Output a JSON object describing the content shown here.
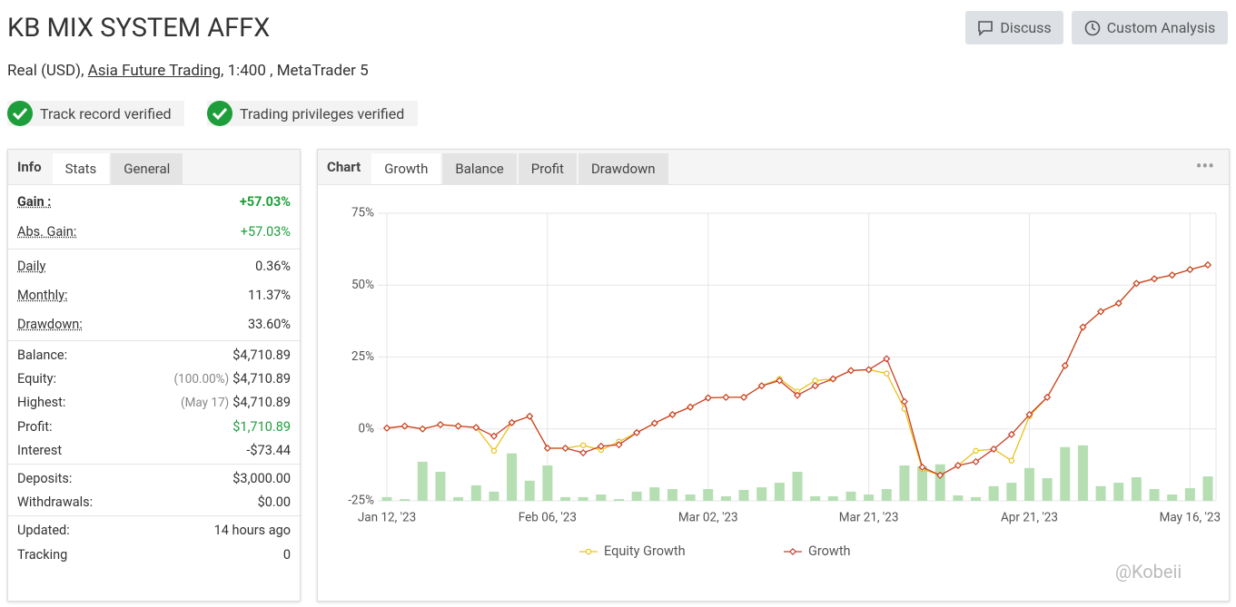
{
  "header": {
    "title": "KB MIX SYSTEM AFFX",
    "subtitle_prefix": "Real (USD), ",
    "subtitle_link": "Asia Future Trading",
    "subtitle_suffix": ", 1:400 , MetaTrader 5",
    "buttons": [
      "Discuss",
      "Custom Analysis"
    ]
  },
  "badges": [
    "Track record verified",
    "Trading privileges verified"
  ],
  "stats_panel": {
    "tabs": [
      "Info",
      "Stats",
      "General"
    ],
    "groups": [
      [
        {
          "label": "Gain :",
          "value": "+57.03%",
          "color": "#1e9e3a"
        },
        {
          "label": "Abs. Gain:",
          "value": "+57.03%",
          "color": "#1e9e3a"
        }
      ],
      [
        {
          "label": "Daily",
          "value": "0.36%"
        },
        {
          "label": "Monthly:",
          "value": "11.37%"
        },
        {
          "label": "Drawdown:",
          "value": "33.60%"
        }
      ],
      [
        {
          "label": "Balance:",
          "value": "$4,710.89"
        },
        {
          "label": "Equity:",
          "note": "(100.00%)",
          "value": "$4,710.89"
        },
        {
          "label": "Highest:",
          "note": "(May 17)",
          "value": "$4,710.89"
        },
        {
          "label": "Profit:",
          "value": "$1,710.89",
          "color": "#1e9e3a"
        },
        {
          "label": "Interest",
          "value": "-$73.44"
        }
      ],
      [
        {
          "label": "Deposits:",
          "value": "$3,000.00"
        },
        {
          "label": "Withdrawals:",
          "value": "$0.00"
        }
      ],
      [
        {
          "label": "Updated:",
          "value": "14 hours ago"
        },
        {
          "label": "Tracking",
          "value": "0"
        }
      ]
    ]
  },
  "chart_panel": {
    "tabs": [
      "Chart",
      "Growth",
      "Balance",
      "Profit",
      "Drawdown"
    ]
  },
  "chart_data": {
    "type": "line",
    "categories": [
      "Jan 12, '23",
      null,
      null,
      null,
      null,
      null,
      null,
      null,
      null,
      "Feb 06, '23",
      null,
      null,
      null,
      null,
      null,
      null,
      null,
      null,
      "Mar 02, '23",
      null,
      null,
      null,
      null,
      null,
      null,
      null,
      null,
      "Mar 21, '23",
      null,
      null,
      null,
      null,
      null,
      null,
      null,
      null,
      "Apr 21, '23",
      null,
      null,
      null,
      null,
      null,
      null,
      null,
      null,
      "May 16, '23",
      null
    ],
    "ylim": [
      -25,
      75
    ],
    "yticks": [
      {
        "value": -25,
        "label": "-25%"
      },
      {
        "value": 0,
        "label": "0%"
      },
      {
        "value": 25,
        "label": "25%"
      },
      {
        "value": 50,
        "label": "50%"
      },
      {
        "value": 75,
        "label": "75%"
      }
    ],
    "grid": true,
    "series": [
      {
        "name": "Equity Growth",
        "color": "#e8c21c",
        "values": [
          0.3,
          1,
          0,
          1.5,
          1,
          0.5,
          -7.6,
          2.2,
          4.4,
          -6.7,
          -6.7,
          -5.7,
          -7.3,
          -4.4,
          -1.3,
          2,
          5,
          7.6,
          10.8,
          11,
          11,
          15,
          17.4,
          13,
          16.8,
          17.4,
          20.3,
          20.6,
          19.3,
          7,
          -14,
          -16.1,
          -12.7,
          -7.6,
          -7,
          -11,
          4.4,
          11,
          22,
          35.4,
          40.8,
          43.7,
          50.6,
          52.2,
          53.5,
          55.4,
          57.03
        ]
      },
      {
        "name": "Growth",
        "color": "#c9402a",
        "values": [
          0.3,
          1,
          0,
          1.5,
          1,
          0.5,
          -2.5,
          2.2,
          4.4,
          -6.7,
          -6.7,
          -8.3,
          -6,
          -5.5,
          -1.3,
          2,
          5,
          7.6,
          10.8,
          11,
          11,
          15,
          16.8,
          11.7,
          15,
          17.4,
          20.3,
          20.6,
          24.4,
          9.5,
          -13.3,
          -16.1,
          -12.7,
          -11.4,
          -7,
          -1.9,
          5,
          11,
          22,
          35.4,
          40.8,
          43.7,
          50.6,
          52.2,
          53.5,
          55.4,
          57.03
        ]
      }
    ],
    "bars": {
      "color": "#b5dfb3",
      "values": [
        -23.7,
        -24.4,
        -11.4,
        -14.9,
        -23.7,
        -19.6,
        -21.8,
        -8.5,
        -18,
        -12.7,
        -23.7,
        -23.7,
        -22.8,
        -24.4,
        -21.8,
        -20.3,
        -20.9,
        -22.8,
        -20.9,
        -23.4,
        -21.2,
        -20.3,
        -18.7,
        -14.9,
        -23.4,
        -23.4,
        -21.8,
        -22.8,
        -20.9,
        -12.7,
        -13,
        -12.3,
        -23.1,
        -23.7,
        -19.9,
        -18.7,
        -13.6,
        -17.1,
        -6.3,
        -5.7,
        -19.9,
        -18.7,
        -16.8,
        -20.9,
        -22.8,
        -20.6,
        -16.5
      ]
    }
  },
  "watermark": "@Kobeii"
}
